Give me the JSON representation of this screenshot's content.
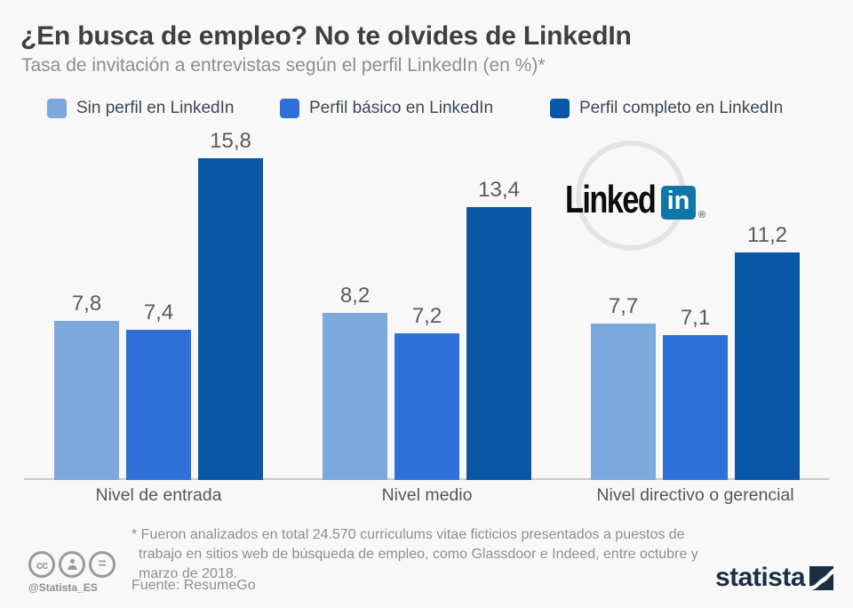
{
  "header": {
    "title": "¿En busca de empleo? No te olvides de LinkedIn",
    "subtitle": "Tasa de invitación a entrevistas según el perfil LinkedIn (en %)*"
  },
  "chart_data": {
    "type": "bar",
    "title": "Tasa de invitación a entrevistas según el perfil LinkedIn (en %)",
    "categories": [
      "Nivel de entrada",
      "Nivel medio",
      "Nivel directivo o gerencial"
    ],
    "series": [
      {
        "name": "Sin perfil en LinkedIn",
        "color": "#7ca8dc",
        "values": [
          7.8,
          8.2,
          7.7
        ],
        "labels": [
          "7,8",
          "8,2",
          "7,7"
        ]
      },
      {
        "name": "Perfil básico en LinkedIn",
        "color": "#2e70d8",
        "values": [
          7.4,
          7.2,
          7.1
        ],
        "labels": [
          "7,4",
          "7,2",
          "7,1"
        ]
      },
      {
        "name": "Perfil completo en LinkedIn",
        "color": "#0a57a6",
        "values": [
          15.8,
          13.4,
          11.2
        ],
        "labels": [
          "15,8",
          "13,4",
          "11,2"
        ]
      }
    ],
    "xlabel": "",
    "ylabel": "",
    "ylim": [
      0,
      17
    ],
    "grid": false,
    "legend_position": "top",
    "value_label_format": "comma-decimal"
  },
  "linkedin_logo": {
    "text": "Linked",
    "badge": "in",
    "registered": "®"
  },
  "footer": {
    "footnote": "* Fueron analizados en total 24.570 curriculums vitae ficticios presentados a puestos de trabajo en sitios web de búsqueda de empleo, como Glassdoor e Indeed, entre octubre y marzo de 2018.",
    "source": "Fuente: ResumeGo",
    "social_handle": "@Statista_ES",
    "brand": "statista"
  },
  "icons": {
    "cc_icon": "cc",
    "attribution_icon": "person-silhouette",
    "no_derivatives_icon": "="
  },
  "colors": {
    "background": "#f8f8f8",
    "series_light": "#7ca8dc",
    "series_medium": "#2e70d8",
    "series_dark": "#0a57a6",
    "axis": "#cbcbcb",
    "statista_navy": "#1b2f42",
    "linkedin_badge": "#0e76a8"
  }
}
